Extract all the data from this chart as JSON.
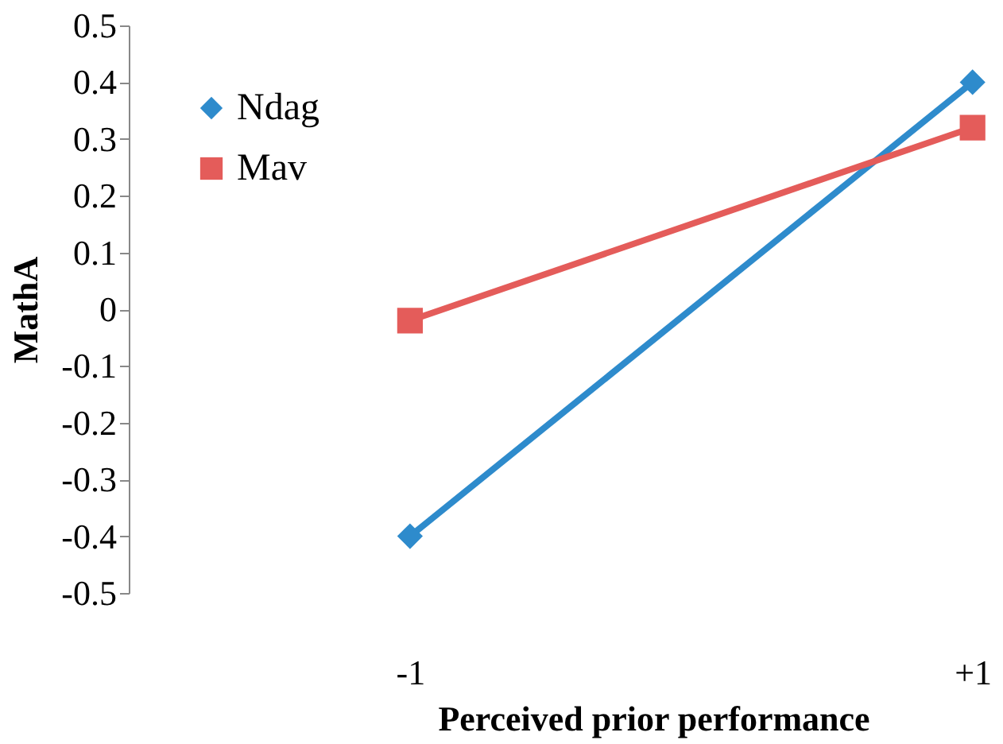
{
  "chart_data": {
    "type": "line",
    "xlabel": "Perceived prior performance",
    "ylabel": "MathA",
    "categories": [
      "-1",
      "+1"
    ],
    "series": [
      {
        "name": "Ndag",
        "color": "#2e8bcc",
        "marker": "diamond",
        "values": [
          -0.4,
          0.4
        ]
      },
      {
        "name": "Mav",
        "color": "#e45c5a",
        "marker": "square",
        "values": [
          -0.02,
          0.32
        ]
      }
    ],
    "ylim": [
      -0.5,
      0.5
    ],
    "yticks": [
      -0.5,
      -0.4,
      -0.3,
      -0.2,
      -0.1,
      0,
      0.1,
      0.2,
      0.3,
      0.4,
      0.5
    ],
    "grid": false,
    "legend": "top left",
    "line_style": "solid"
  }
}
